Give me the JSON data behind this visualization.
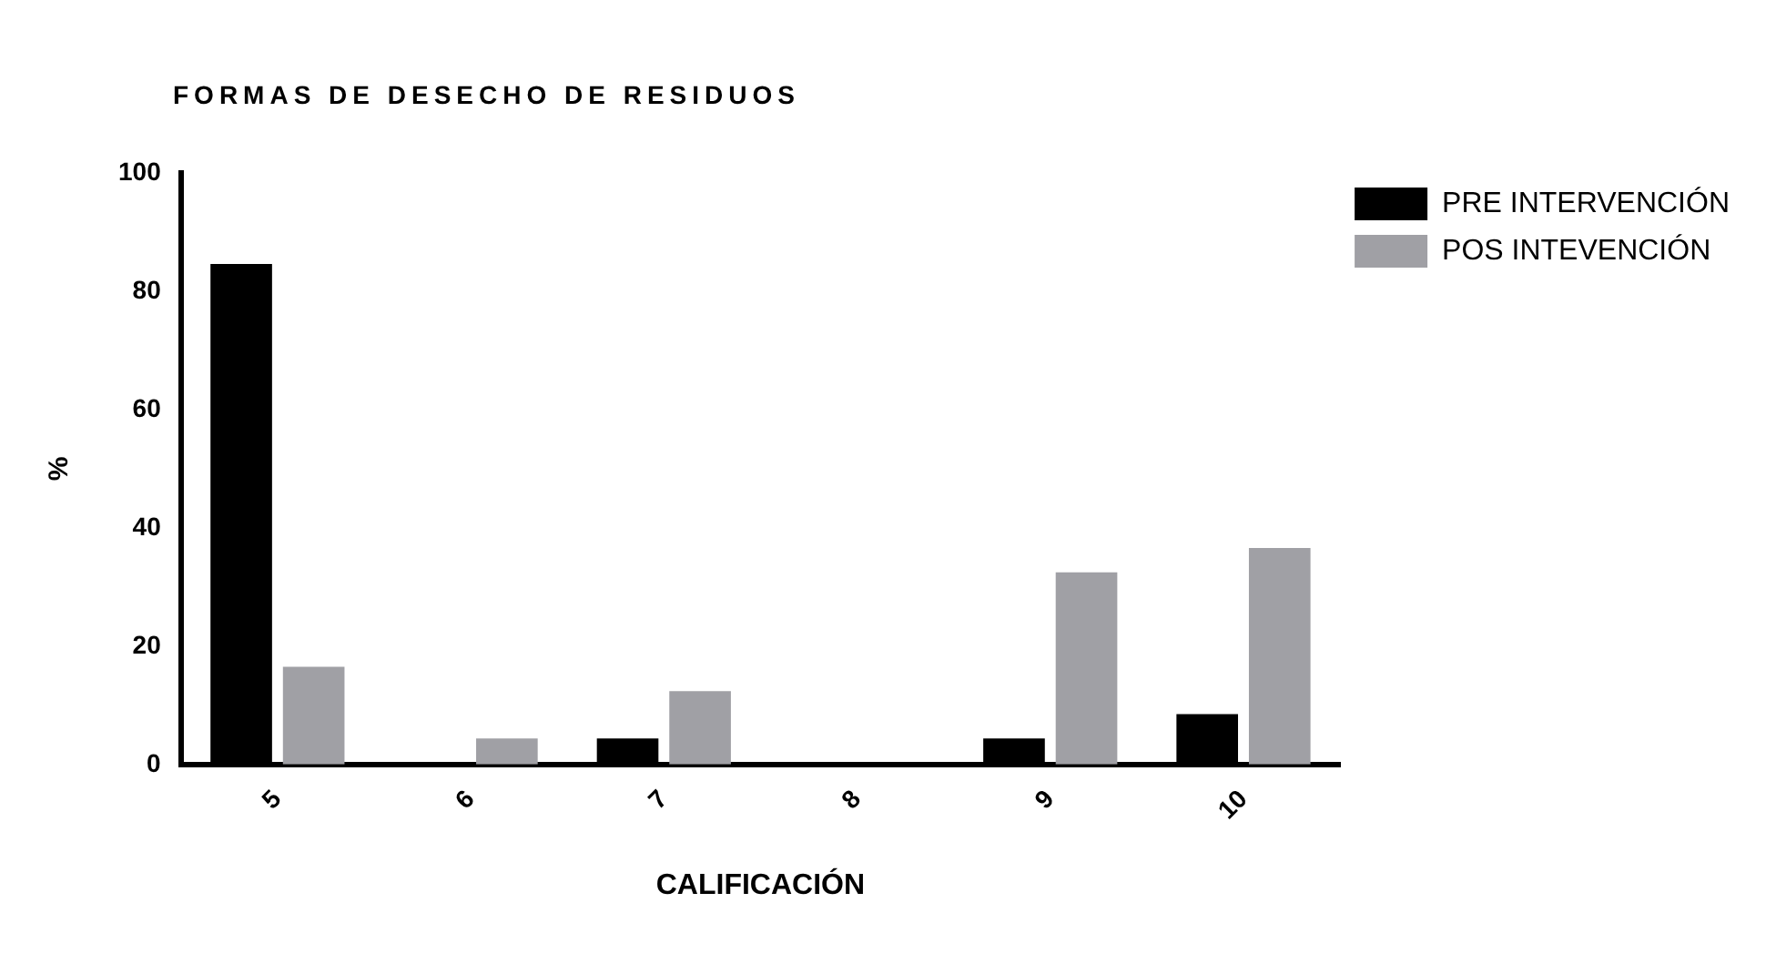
{
  "chart_data": {
    "type": "bar",
    "title": "FORMAS DE DESECHO DE RESIDUOS",
    "xlabel": "CALIFICACIÓN",
    "ylabel": "%",
    "categories": [
      "5",
      "6",
      "7",
      "8",
      "9",
      "10"
    ],
    "series": [
      {
        "name": "PRE INTERVENCIÓN",
        "color": "#000000",
        "values": [
          84.6,
          0,
          4.4,
          0,
          4.4,
          8.5
        ]
      },
      {
        "name": "POS INTEVENCIÓN",
        "color": "#a0a0a5",
        "values": [
          16.5,
          4.4,
          12.4,
          0,
          32.5,
          36.6
        ]
      }
    ],
    "ylim": [
      0,
      100
    ],
    "yticks": [
      0,
      20,
      40,
      60,
      80,
      100
    ],
    "grid": false,
    "legend": "top right"
  }
}
